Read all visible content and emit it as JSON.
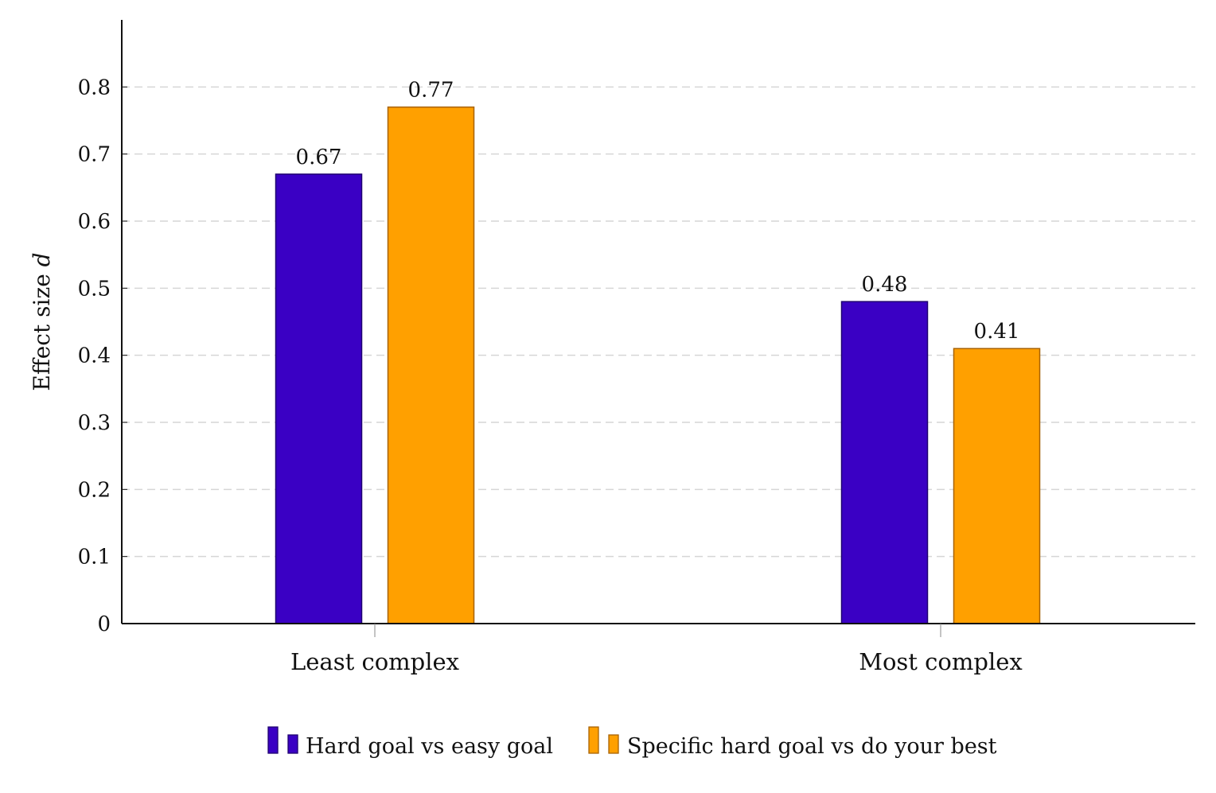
{
  "chart_data": {
    "type": "bar",
    "categories": [
      "Least complex",
      "Most complex"
    ],
    "series": [
      {
        "name": "Hard goal vs easy goal",
        "values": [
          0.67,
          0.48
        ],
        "labels": [
          "0.67",
          "0.48"
        ],
        "color": "#3a00c4",
        "edge_color": "#1e0070"
      },
      {
        "name": "Specific hard goal vs do your best",
        "values": [
          0.77,
          0.41
        ],
        "labels": [
          "0.77",
          "0.41"
        ],
        "color": "#ffa000",
        "edge_color": "#a86200"
      }
    ],
    "ylabel_text": "Effect size ",
    "ylabel_symbol": "d",
    "ylim": [
      0,
      0.9
    ],
    "yticks": [
      0,
      0.1,
      0.2,
      0.3,
      0.4,
      0.5,
      0.6,
      0.7,
      0.8
    ],
    "ytick_labels": [
      "0",
      "0.1",
      "0.2",
      "0.3",
      "0.4",
      "0.5",
      "0.6",
      "0.7",
      "0.8"
    ],
    "grid": "horizontal dashed",
    "grid_color": "#d6d6d6",
    "legend_position": "bottom-center"
  }
}
